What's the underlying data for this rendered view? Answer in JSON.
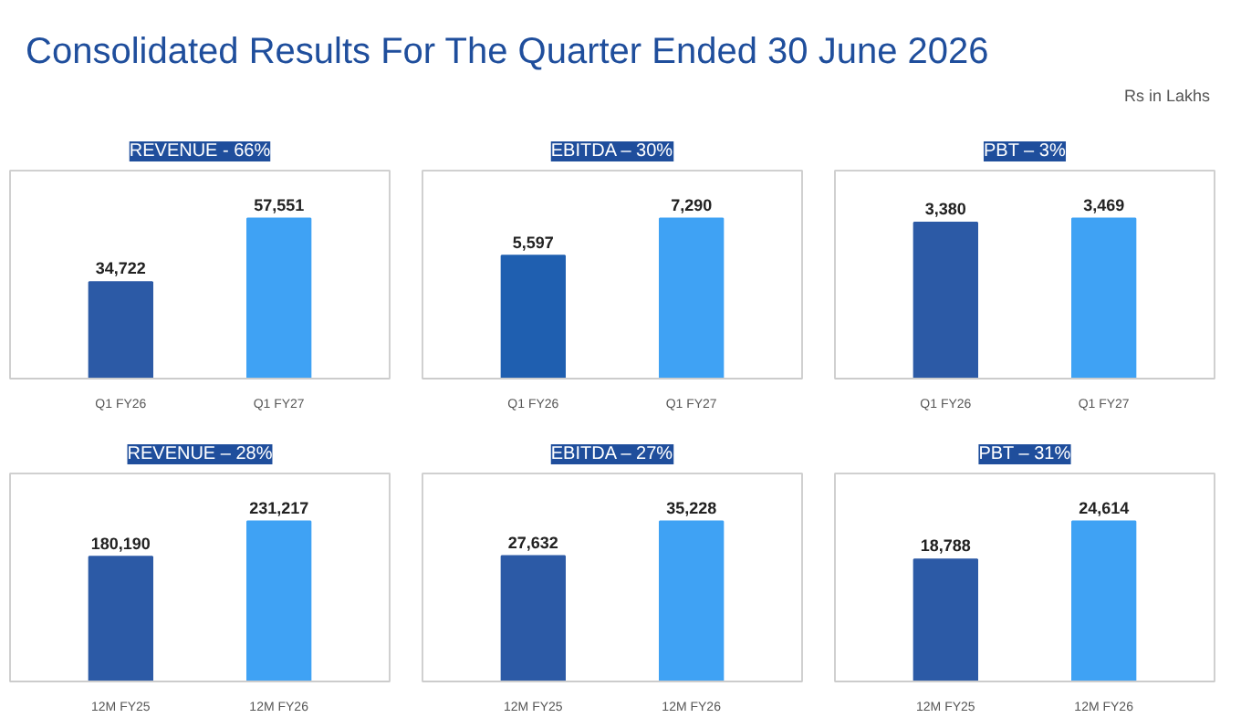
{
  "chart_data": [
    {
      "type": "other",
      "title": "Consolidated Results For The Quarter Ended 30 June 2026",
      "annotations": [
        "Rs in Lakhs"
      ]
    },
    {
      "type": "bar",
      "title": "REVENUE - 66%",
      "categories": [
        "Q1 FY26",
        "Q1 FY27"
      ],
      "values": [
        34722,
        57551
      ],
      "colors": [
        "#2c5aa6",
        "#3fa2f4"
      ],
      "data_labels": true,
      "value_labels": [
        "34,722",
        "57,551"
      ]
    },
    {
      "type": "bar",
      "title": "EBITDA – 30%",
      "categories": [
        "Q1 FY26",
        "Q1 FY27"
      ],
      "values": [
        5597,
        7290
      ],
      "colors": [
        "#1f5fb0",
        "#3fa2f4"
      ],
      "data_labels": true,
      "value_labels": [
        "5,597",
        "7,290"
      ]
    },
    {
      "type": "bar",
      "title": "PBT – 3%",
      "categories": [
        "Q1 FY26",
        "Q1 FY27"
      ],
      "values": [
        3380,
        3469
      ],
      "colors": [
        "#2c5aa6",
        "#3fa2f4"
      ],
      "data_labels": true,
      "value_labels": [
        "3,380",
        "3,469"
      ]
    },
    {
      "type": "bar",
      "title": "REVENUE – 28%",
      "categories": [
        "12M FY25",
        "12M FY26"
      ],
      "values": [
        180190,
        231217
      ],
      "colors": [
        "#2c5aa6",
        "#3fa2f4"
      ],
      "data_labels": true,
      "value_labels": [
        "180,190",
        "231,217"
      ]
    },
    {
      "type": "bar",
      "title": "EBITDA – 27%",
      "categories": [
        "12M FY25",
        "12M FY26"
      ],
      "values": [
        27632,
        35228
      ],
      "colors": [
        "#2c5aa6",
        "#3fa2f4"
      ],
      "data_labels": true,
      "value_labels": [
        "27,632",
        "35,228"
      ]
    },
    {
      "type": "bar",
      "title": "PBT – 31%",
      "categories": [
        "12M FY25",
        "12M FY26"
      ],
      "values": [
        18788,
        24614
      ],
      "colors": [
        "#2c5aa6",
        "#3fa2f4"
      ],
      "data_labels": true,
      "value_labels": [
        "18,788",
        "24,614"
      ]
    }
  ]
}
